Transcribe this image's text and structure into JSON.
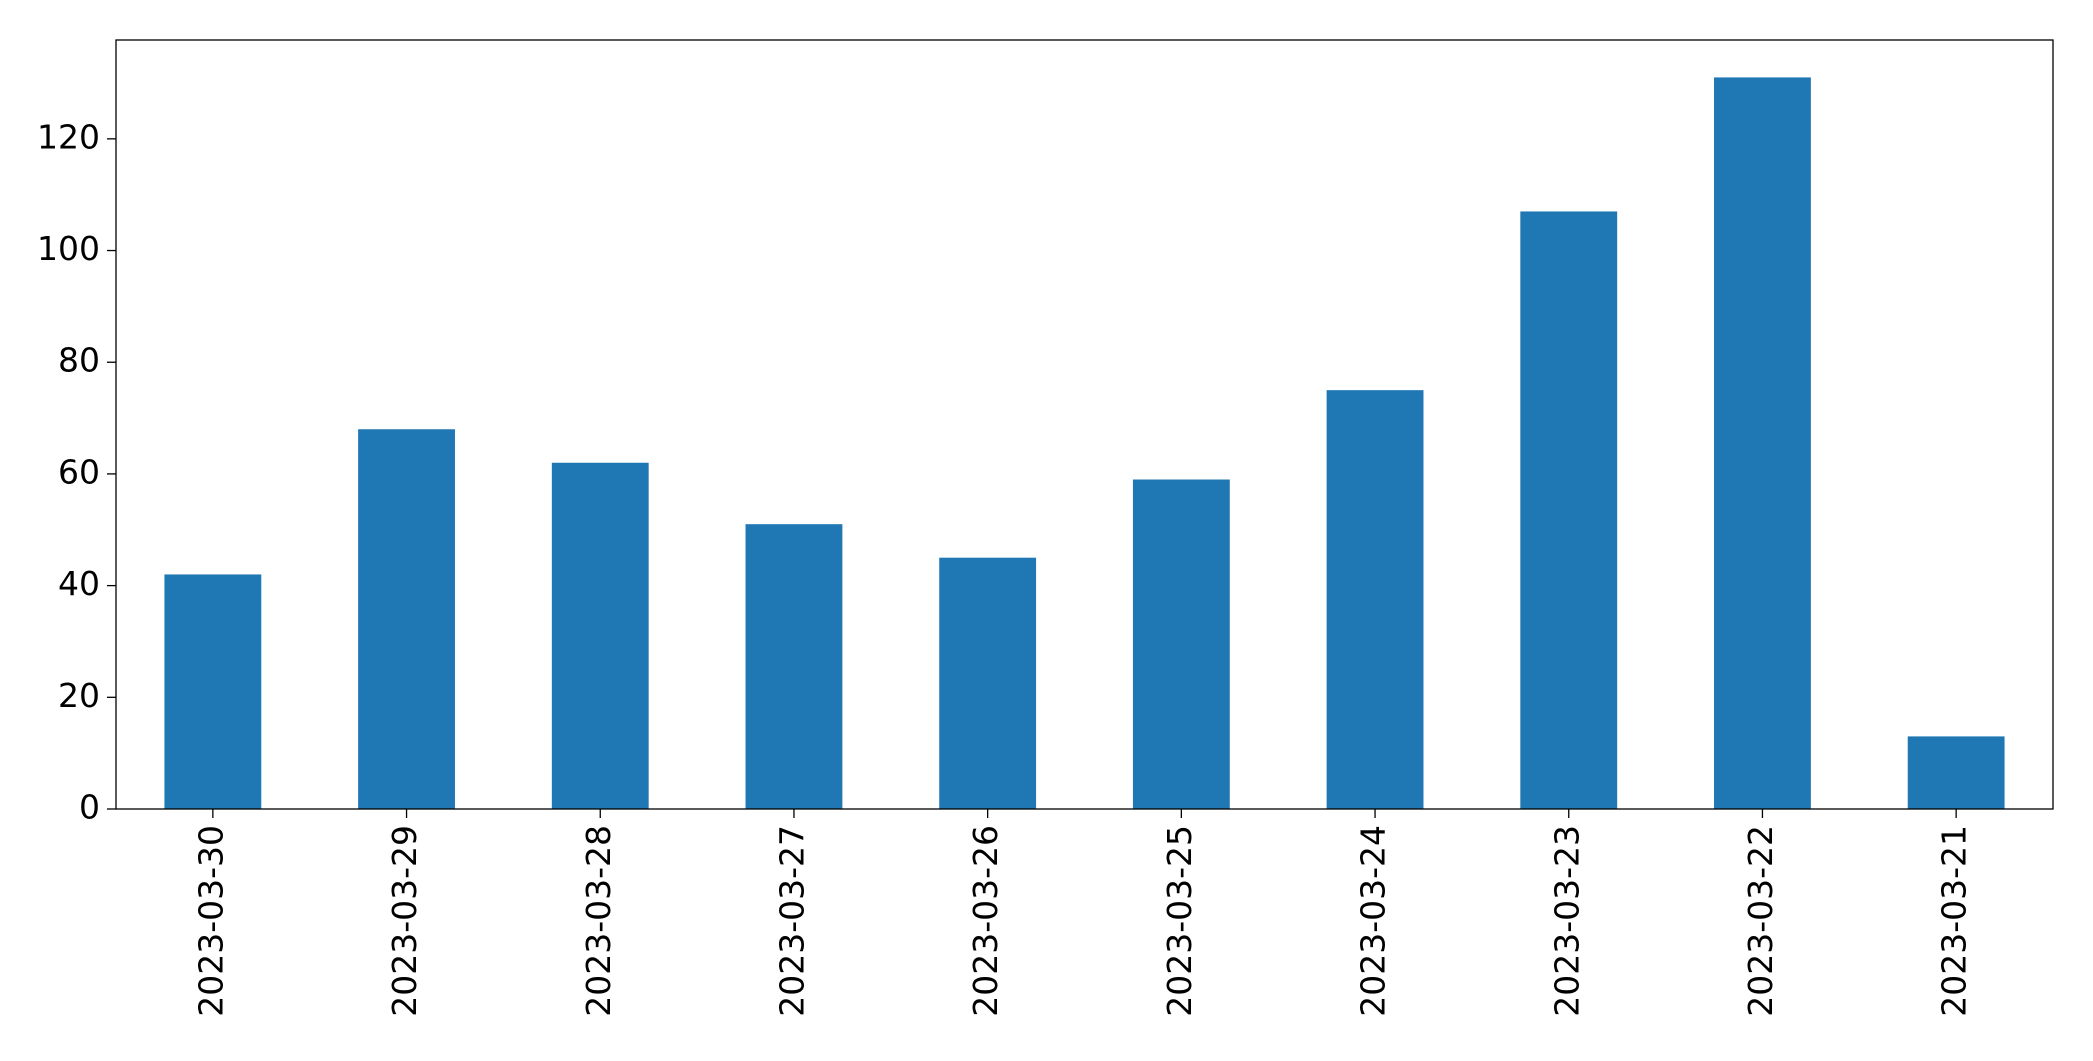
{
  "chart_data": {
    "type": "bar",
    "categories": [
      "2023-03-30",
      "2023-03-29",
      "2023-03-28",
      "2023-03-27",
      "2023-03-26",
      "2023-03-25",
      "2023-03-24",
      "2023-03-23",
      "2023-03-22",
      "2023-03-21"
    ],
    "values": [
      42,
      68,
      62,
      51,
      45,
      59,
      75,
      107,
      131,
      13
    ],
    "color": "#1f77b4",
    "ylim": [
      0,
      137.7
    ],
    "yticks": [
      0,
      20,
      40,
      60,
      80,
      100,
      120
    ],
    "grid": false
  }
}
